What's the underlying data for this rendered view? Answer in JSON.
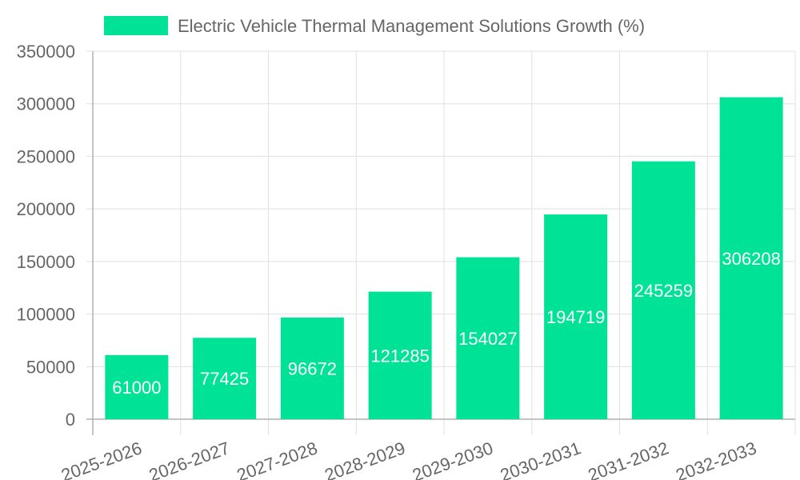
{
  "colors": {
    "bar": "#00E396",
    "grid": "#e0e0e0",
    "axis": "#b0b0b0",
    "text": "#666666",
    "data_label": "#ffffff"
  },
  "chart_data": {
    "type": "bar",
    "title": "",
    "xlabel": "",
    "ylabel": "",
    "categories": [
      "2025-2026",
      "2026-2027",
      "2027-2028",
      "2028-2029",
      "2029-2030",
      "2030-2031",
      "2031-2032",
      "2032-2033"
    ],
    "series": [
      {
        "name": "Electric Vehicle Thermal Management Solutions Growth (%)",
        "values": [
          61000,
          77425,
          96672,
          121285,
          154027,
          194719,
          245259,
          306208
        ]
      }
    ],
    "ylim": [
      0,
      350000
    ],
    "yticks": [
      "0",
      "50000",
      "100000",
      "150000",
      "200000",
      "250000",
      "300000",
      "350000"
    ],
    "grid": true,
    "legend": "top-center",
    "data_labels": true
  }
}
